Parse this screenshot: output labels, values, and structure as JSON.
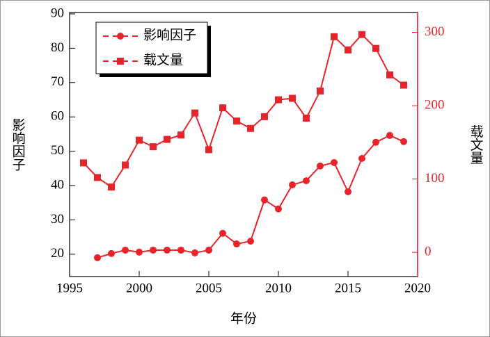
{
  "chart_data": {
    "type": "line",
    "x_label": "年份",
    "y_label": "影响因子",
    "y2_label": "载文量",
    "xlim": [
      1995,
      2020
    ],
    "xticks": [
      1995,
      2000,
      2005,
      2010,
      2015,
      2020
    ],
    "ylim": [
      13.5,
      90.4
    ],
    "yticks": [
      20,
      30,
      40,
      50,
      60,
      70,
      80,
      90
    ],
    "y2lim": [
      -33,
      327
    ],
    "y2ticks": [
      0,
      100,
      200,
      300
    ],
    "legend": "upper left",
    "series": [
      {
        "name": "影响因子",
        "color": "#e8232a",
        "marker": "circle",
        "x": [
          1997,
          1998,
          1999,
          2000,
          2001,
          2002,
          2003,
          2004,
          2005,
          2006,
          2007,
          2008,
          2009,
          2010,
          2011,
          2012,
          2013,
          2014,
          2015,
          2016,
          2017,
          2018,
          2019
        ],
        "values": [
          19,
          20.2,
          21.2,
          20.6,
          21.2,
          21.2,
          21.2,
          20.4,
          21.2,
          26.1,
          23,
          23.8,
          35.8,
          33.2,
          40.2,
          41.4,
          45.7,
          46.7,
          38.2,
          47.9,
          52.6,
          54.6,
          52.8
        ]
      },
      {
        "name": "载文量",
        "color": "#e8232a",
        "marker": "square",
        "axis": "y2",
        "x": [
          1996,
          1997,
          1998,
          1999,
          2000,
          2001,
          2002,
          2003,
          2004,
          2005,
          2006,
          2007,
          2008,
          2009,
          2010,
          2011,
          2012,
          2013,
          2014,
          2015,
          2016,
          2017,
          2018,
          2019
        ],
        "values": [
          122,
          102,
          89,
          119,
          153,
          144,
          154,
          160,
          190,
          140,
          197,
          179,
          169,
          185,
          208,
          210,
          183,
          220,
          294,
          276,
          297,
          278,
          242,
          228
        ]
      }
    ]
  }
}
